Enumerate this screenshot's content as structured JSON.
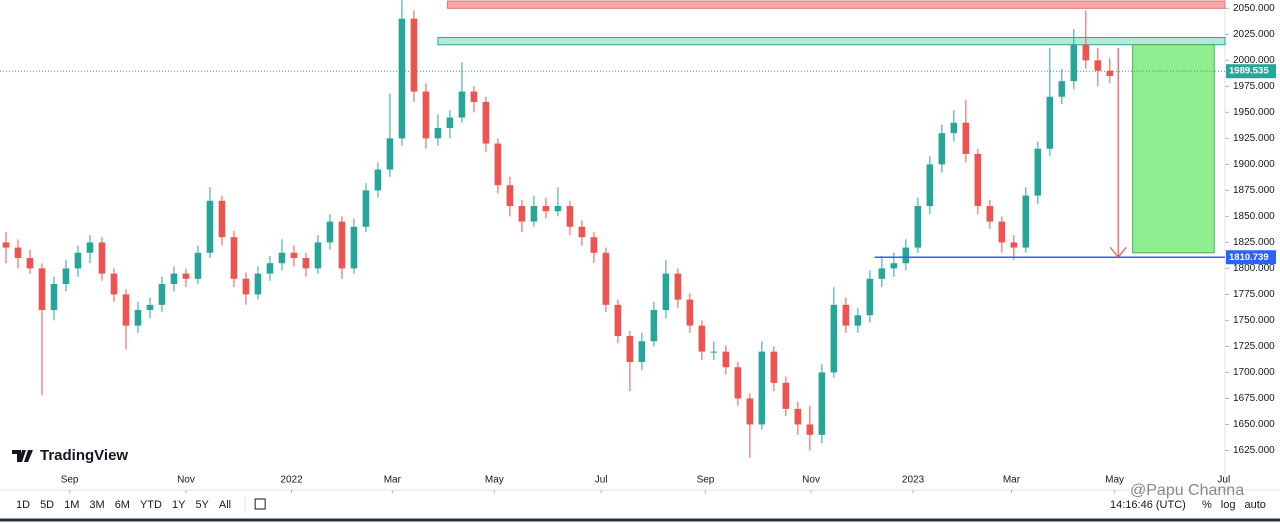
{
  "chart_data": {
    "type": "candlestick",
    "xlim": [
      -0.5,
      101.6
    ],
    "xticks": [
      {
        "value": 5.3,
        "label": "Sep"
      },
      {
        "value": 15,
        "label": "Nov"
      },
      {
        "value": 23.8,
        "label": "2022"
      },
      {
        "value": 32.2,
        "label": "Mar"
      },
      {
        "value": 40.7,
        "label": "May"
      },
      {
        "value": 49.6,
        "label": "Jul"
      },
      {
        "value": 58.3,
        "label": "Sep"
      },
      {
        "value": 67.1,
        "label": "Nov"
      },
      {
        "value": 75.6,
        "label": "2023"
      },
      {
        "value": 83.8,
        "label": "Mar"
      },
      {
        "value": 92.4,
        "label": "May"
      },
      {
        "value": 101.5,
        "label": "Jul"
      }
    ],
    "ylim": [
      1587,
      2058
    ],
    "yticks": [
      {
        "value": 1625,
        "label": "1625.000"
      },
      {
        "value": 1650,
        "label": "1650.000"
      },
      {
        "value": 1675,
        "label": "1675.000"
      },
      {
        "value": 1700,
        "label": "1700.000"
      },
      {
        "value": 1725,
        "label": "1725.000"
      },
      {
        "value": 1750,
        "label": "1750.000"
      },
      {
        "value": 1775,
        "label": "1775.000"
      },
      {
        "value": 1800,
        "label": "1800.000"
      },
      {
        "value": 1825,
        "label": "1825.000"
      },
      {
        "value": 1850,
        "label": "1850.000"
      },
      {
        "value": 1875,
        "label": "1875.000"
      },
      {
        "value": 1900,
        "label": "1900.000"
      },
      {
        "value": 1925,
        "label": "1925.000"
      },
      {
        "value": 1950,
        "label": "1950.000"
      },
      {
        "value": 1975,
        "label": "1975.000"
      },
      {
        "value": 2000,
        "label": "2000.000"
      },
      {
        "value": 2025,
        "label": "2025.000"
      },
      {
        "value": 2050,
        "label": "2050.000"
      }
    ],
    "up_color": "#26a69a",
    "down_color": "#ef5350",
    "candles": [
      [
        1825,
        1835,
        1805,
        1820
      ],
      [
        1820,
        1828,
        1800,
        1810
      ],
      [
        1810,
        1818,
        1795,
        1800
      ],
      [
        1800,
        1805,
        1678,
        1760
      ],
      [
        1760,
        1792,
        1750,
        1785
      ],
      [
        1785,
        1808,
        1778,
        1800
      ],
      [
        1800,
        1822,
        1792,
        1815
      ],
      [
        1815,
        1832,
        1805,
        1825
      ],
      [
        1825,
        1830,
        1788,
        1795
      ],
      [
        1795,
        1800,
        1768,
        1775
      ],
      [
        1775,
        1780,
        1722,
        1745
      ],
      [
        1745,
        1768,
        1738,
        1760
      ],
      [
        1760,
        1772,
        1752,
        1765
      ],
      [
        1765,
        1792,
        1758,
        1785
      ],
      [
        1785,
        1802,
        1778,
        1795
      ],
      [
        1795,
        1800,
        1782,
        1790
      ],
      [
        1790,
        1822,
        1785,
        1815
      ],
      [
        1815,
        1878,
        1810,
        1865
      ],
      [
        1865,
        1870,
        1822,
        1830
      ],
      [
        1830,
        1836,
        1782,
        1790
      ],
      [
        1790,
        1796,
        1765,
        1775
      ],
      [
        1775,
        1802,
        1770,
        1795
      ],
      [
        1795,
        1812,
        1788,
        1805
      ],
      [
        1805,
        1828,
        1798,
        1815
      ],
      [
        1815,
        1822,
        1802,
        1810
      ],
      [
        1810,
        1815,
        1792,
        1800
      ],
      [
        1800,
        1832,
        1795,
        1825
      ],
      [
        1825,
        1852,
        1818,
        1845
      ],
      [
        1845,
        1850,
        1790,
        1800
      ],
      [
        1800,
        1848,
        1795,
        1840
      ],
      [
        1840,
        1882,
        1835,
        1875
      ],
      [
        1875,
        1902,
        1868,
        1895
      ],
      [
        1895,
        1968,
        1888,
        1925
      ],
      [
        1925,
        2058,
        1918,
        2040
      ],
      [
        2040,
        2048,
        1960,
        1970
      ],
      [
        1970,
        1978,
        1915,
        1925
      ],
      [
        1925,
        1948,
        1918,
        1935
      ],
      [
        1935,
        1952,
        1925,
        1945
      ],
      [
        1945,
        1998,
        1940,
        1970
      ],
      [
        1970,
        1975,
        1950,
        1960
      ],
      [
        1960,
        1965,
        1912,
        1920
      ],
      [
        1920,
        1925,
        1872,
        1880
      ],
      [
        1880,
        1888,
        1850,
        1860
      ],
      [
        1860,
        1866,
        1835,
        1845
      ],
      [
        1845,
        1870,
        1840,
        1860
      ],
      [
        1860,
        1868,
        1848,
        1855
      ],
      [
        1855,
        1878,
        1850,
        1860
      ],
      [
        1860,
        1865,
        1832,
        1840
      ],
      [
        1840,
        1846,
        1822,
        1830
      ],
      [
        1830,
        1835,
        1805,
        1815
      ],
      [
        1815,
        1820,
        1758,
        1765
      ],
      [
        1765,
        1770,
        1728,
        1735
      ],
      [
        1735,
        1740,
        1682,
        1710
      ],
      [
        1710,
        1738,
        1702,
        1730
      ],
      [
        1730,
        1768,
        1725,
        1760
      ],
      [
        1760,
        1808,
        1752,
        1795
      ],
      [
        1795,
        1800,
        1762,
        1770
      ],
      [
        1770,
        1776,
        1738,
        1745
      ],
      [
        1745,
        1750,
        1712,
        1720
      ],
      [
        1720,
        1730,
        1712,
        1720
      ],
      [
        1720,
        1726,
        1698,
        1705
      ],
      [
        1705,
        1710,
        1668,
        1675
      ],
      [
        1675,
        1680,
        1618,
        1650
      ],
      [
        1650,
        1730,
        1645,
        1720
      ],
      [
        1720,
        1725,
        1682,
        1690
      ],
      [
        1690,
        1696,
        1658,
        1665
      ],
      [
        1665,
        1672,
        1640,
        1650
      ],
      [
        1650,
        1668,
        1625,
        1640
      ],
      [
        1640,
        1708,
        1632,
        1700
      ],
      [
        1700,
        1782,
        1695,
        1765
      ],
      [
        1765,
        1772,
        1738,
        1745
      ],
      [
        1745,
        1762,
        1738,
        1755
      ],
      [
        1755,
        1798,
        1748,
        1790
      ],
      [
        1790,
        1812,
        1782,
        1800
      ],
      [
        1800,
        1815,
        1792,
        1805
      ],
      [
        1805,
        1828,
        1798,
        1820
      ],
      [
        1820,
        1868,
        1815,
        1860
      ],
      [
        1860,
        1908,
        1852,
        1900
      ],
      [
        1900,
        1938,
        1892,
        1930
      ],
      [
        1930,
        1952,
        1922,
        1940
      ],
      [
        1940,
        1962,
        1902,
        1910
      ],
      [
        1910,
        1915,
        1852,
        1860
      ],
      [
        1860,
        1866,
        1838,
        1845
      ],
      [
        1845,
        1850,
        1815,
        1825
      ],
      [
        1825,
        1832,
        1808,
        1820
      ],
      [
        1820,
        1878,
        1815,
        1870
      ],
      [
        1870,
        1922,
        1862,
        1915
      ],
      [
        1915,
        2012,
        1908,
        1965
      ],
      [
        1965,
        1992,
        1958,
        1980
      ],
      [
        1980,
        2030,
        1972,
        2015
      ],
      [
        2015,
        2048,
        1992,
        2000
      ],
      [
        2000,
        2012,
        1975,
        1990
      ],
      [
        1990,
        2002,
        1978,
        1985
      ]
    ],
    "resistance_zone": {
      "from": 2050,
      "to": 2057,
      "x_start": 36.8,
      "color": "#f5a8a8"
    },
    "supply_zone": {
      "from": 2015,
      "to": 2022,
      "x_start": 36.0,
      "color": "#b6ead6"
    },
    "target_box": {
      "from": 1815,
      "to": 2015,
      "x_start": 93.9,
      "x_end": 100.7,
      "color": "#90ee90"
    },
    "support_line": {
      "value": 1810.739,
      "x_start": 72.4,
      "color": "#2962ff"
    },
    "arrow": {
      "from": 2012,
      "to": 1810.739,
      "x": 92.7,
      "color": "#ef5350"
    },
    "current_price": 1989.535,
    "brand": "TradingView",
    "watermark": "@Papu Channa",
    "toolbar": {
      "ranges": [
        "1D",
        "5D",
        "1M",
        "3M",
        "6M",
        "YTD",
        "1Y",
        "5Y",
        "All"
      ],
      "time": "14:16:46 (UTC)",
      "options": [
        "%",
        "log",
        "auto"
      ]
    }
  }
}
